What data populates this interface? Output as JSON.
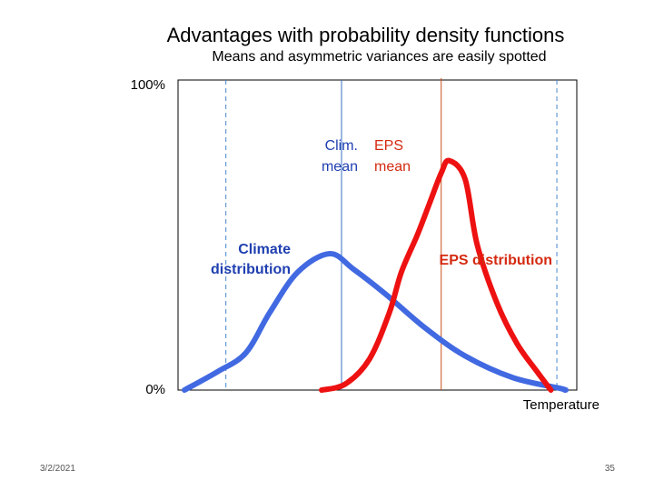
{
  "slide": {
    "title": "Advantages with probability density functions",
    "subtitle": "Means and asymmetric variances are easily spotted",
    "date": "3/2/2021",
    "page_number": "35"
  },
  "colors": {
    "climate": "#4169e1",
    "eps": "#ee1111",
    "climate_label": "#1f3fb0",
    "eps_label": "#d42a10",
    "clim_mean_line": "#3a6fc4",
    "eps_mean_line": "#c8501a",
    "clim_bounds_line": "#4a86c8"
  },
  "chart_data": {
    "type": "line",
    "ylim": [
      0,
      100
    ],
    "y_tick_labels": [
      "100%",
      "0%"
    ],
    "xlabel": "Temperature",
    "series": [
      {
        "name": "Climate distribution",
        "key": "climate",
        "x": [
          1.6,
          10,
          17,
          23,
          30,
          38,
          44,
          52,
          62,
          72,
          84,
          96,
          97
        ],
        "y": [
          0,
          6,
          12,
          25,
          38,
          44,
          39,
          31,
          20,
          11,
          4,
          0.5,
          0
        ]
      },
      {
        "name": "EPS distribution",
        "key": "eps",
        "x": [
          36,
          42,
          48,
          53,
          56,
          60,
          63,
          66,
          68,
          72,
          75,
          80,
          85,
          90,
          93.5
        ],
        "y": [
          0,
          2,
          10,
          25,
          38,
          50,
          60,
          70,
          74,
          68,
          47,
          28,
          15,
          6,
          0
        ]
      }
    ],
    "vlines": [
      {
        "key": "clim_bounds_line",
        "x": 12,
        "dashed": true
      },
      {
        "key": "clim_bounds_line",
        "x": 95,
        "dashed": true
      },
      {
        "key": "clim_mean_line",
        "x": 41,
        "dashed": false
      },
      {
        "key": "eps_mean_line",
        "x": 66,
        "dashed": false
      }
    ],
    "annotations": {
      "clim_mean_line1": "Clim.",
      "clim_mean_line2": "mean",
      "eps_mean_line1": "EPS",
      "eps_mean_line2": "mean",
      "climate_dist_line1": "Climate",
      "climate_dist_line2": "distribution",
      "eps_dist": "EPS distribution"
    }
  }
}
